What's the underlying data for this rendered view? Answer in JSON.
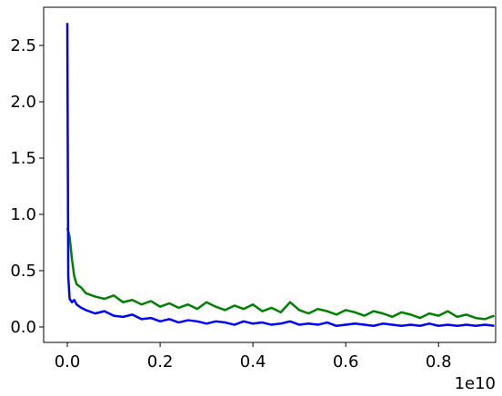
{
  "chart_data": {
    "type": "line",
    "x": [
      0,
      0.002,
      0.005,
      0.01,
      0.015,
      0.02,
      0.03,
      0.04,
      0.06,
      0.08,
      0.1,
      0.12,
      0.14,
      0.16,
      0.18,
      0.2,
      0.22,
      0.24,
      0.26,
      0.28,
      0.3,
      0.32,
      0.34,
      0.36,
      0.38,
      0.4,
      0.42,
      0.44,
      0.46,
      0.48,
      0.5,
      0.52,
      0.54,
      0.56,
      0.58,
      0.6,
      0.62,
      0.64,
      0.66,
      0.68,
      0.7,
      0.72,
      0.74,
      0.76,
      0.78,
      0.8,
      0.82,
      0.84,
      0.86,
      0.88,
      0.9,
      0.92
    ],
    "series": [
      {
        "color": "#008000",
        "values": [
          0.88,
          0.85,
          0.8,
          0.6,
          0.45,
          0.38,
          0.35,
          0.3,
          0.27,
          0.25,
          0.28,
          0.22,
          0.24,
          0.2,
          0.23,
          0.18,
          0.21,
          0.17,
          0.2,
          0.16,
          0.22,
          0.18,
          0.15,
          0.19,
          0.16,
          0.2,
          0.14,
          0.17,
          0.13,
          0.22,
          0.15,
          0.12,
          0.16,
          0.14,
          0.11,
          0.15,
          0.13,
          0.1,
          0.14,
          0.12,
          0.09,
          0.13,
          0.11,
          0.08,
          0.12,
          0.1,
          0.14,
          0.09,
          0.11,
          0.08,
          0.07,
          0.1
        ]
      },
      {
        "color": "#0000ff",
        "values": [
          2.7,
          0.45,
          0.25,
          0.22,
          0.24,
          0.2,
          0.17,
          0.15,
          0.12,
          0.14,
          0.1,
          0.09,
          0.11,
          0.07,
          0.08,
          0.05,
          0.07,
          0.04,
          0.06,
          0.05,
          0.03,
          0.05,
          0.04,
          0.02,
          0.05,
          0.03,
          0.04,
          0.02,
          0.03,
          0.05,
          0.02,
          0.03,
          0.02,
          0.04,
          0.01,
          0.02,
          0.03,
          0.02,
          0.01,
          0.03,
          0.02,
          0.01,
          0.02,
          0.01,
          0.03,
          0.01,
          0.02,
          0.01,
          0.02,
          0.01,
          0.02,
          0.01
        ]
      }
    ],
    "xlim": [
      -0.051,
      0.923
    ],
    "ylim": [
      -0.137,
      2.839
    ],
    "xticks": [
      {
        "value": 0,
        "label": "0.0"
      },
      0.2,
      0.4,
      0.6,
      0.8
    ],
    "yticks": [
      {
        "value": 0,
        "label": "0.0"
      },
      0.5,
      {
        "value": 1,
        "label": "1.0"
      },
      1.5,
      {
        "value": 2,
        "label": "2.0"
      },
      2.5
    ],
    "x_offset_label": "1e10"
  }
}
